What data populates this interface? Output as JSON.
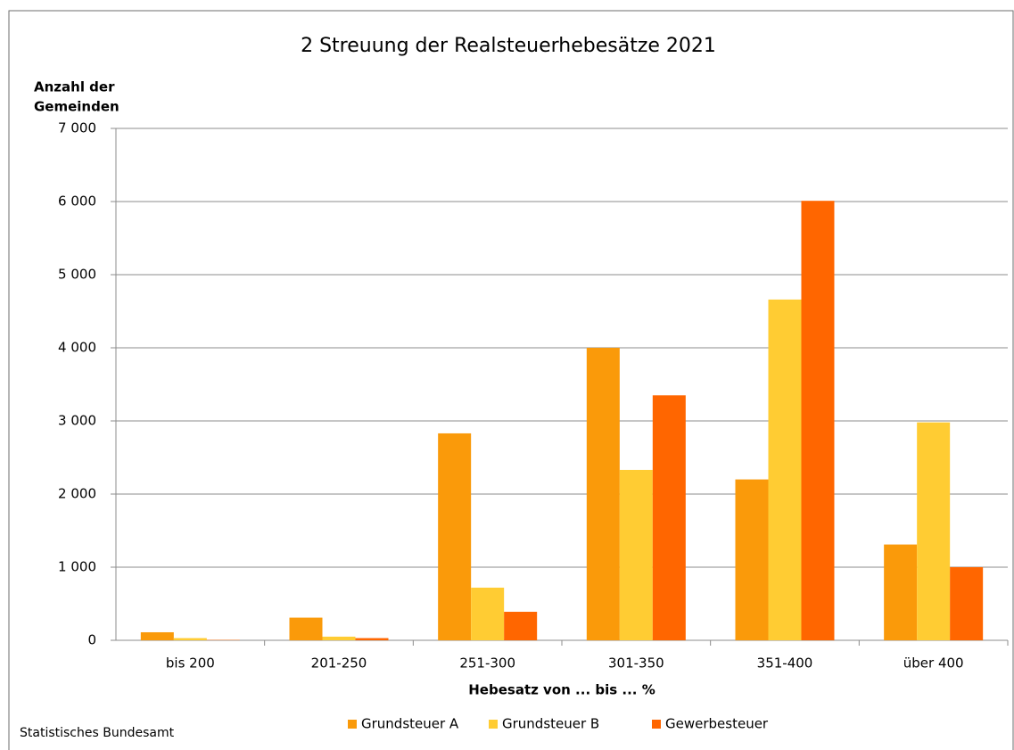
{
  "chart_data": {
    "type": "bar",
    "title": "2 Streuung der Realsteuerhebesätze 2021",
    "y_label": [
      "Anzahl der",
      "Gemeinden"
    ],
    "x_label": "Hebesatz von ... bis ... %",
    "source": "Statistisches Bundesamt",
    "categories": [
      "bis 200",
      "201-250",
      "251-300",
      "301-350",
      "351-400",
      "über 400"
    ],
    "series": [
      {
        "name": "Grundsteuer A",
        "color": "#fa9a0a",
        "values": [
          110,
          310,
          2830,
          4000,
          2200,
          1310
        ]
      },
      {
        "name": "Grundsteuer B",
        "color": "#ffcc33",
        "values": [
          30,
          50,
          720,
          2330,
          4660,
          2980
        ]
      },
      {
        "name": "Gewerbesteuer",
        "color": "#ff6600",
        "values": [
          5,
          30,
          390,
          3350,
          6010,
          1000
        ]
      }
    ],
    "ylim": [
      0,
      7000
    ],
    "yticks": [
      0,
      {
        "value": 1000,
        "label": "1 000"
      },
      {
        "value": 2000,
        "label": "2 000"
      },
      {
        "value": 3000,
        "label": "3 000"
      },
      {
        "value": 4000,
        "label": "4 000"
      },
      {
        "value": 5000,
        "label": "5 000"
      },
      {
        "value": 6000,
        "label": "6 000"
      },
      {
        "value": 7000,
        "label": "7 000"
      }
    ],
    "grid": true,
    "legend": "bottom"
  }
}
